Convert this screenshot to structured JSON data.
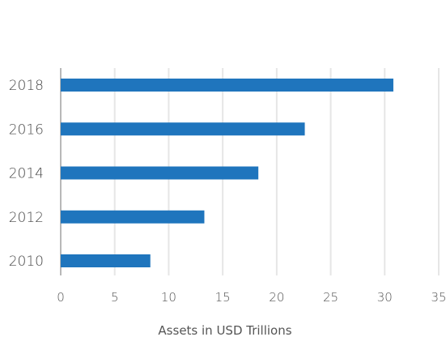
{
  "chart_data": {
    "type": "bar",
    "orientation": "horizontal",
    "categories": [
      "2010",
      "2012",
      "2014",
      "2016",
      "2018"
    ],
    "values": [
      8.3,
      13.3,
      18.3,
      22.6,
      30.8
    ],
    "xlabel": "Assets in USD Trillions",
    "ylabel": "",
    "xlim": [
      0,
      35
    ],
    "xticks": [
      "0",
      "5",
      "10",
      "15",
      "20",
      "25",
      "30",
      "35"
    ],
    "grid": true,
    "bar_color": "#1f75bd",
    "grid_color": "#e6e6e6"
  }
}
